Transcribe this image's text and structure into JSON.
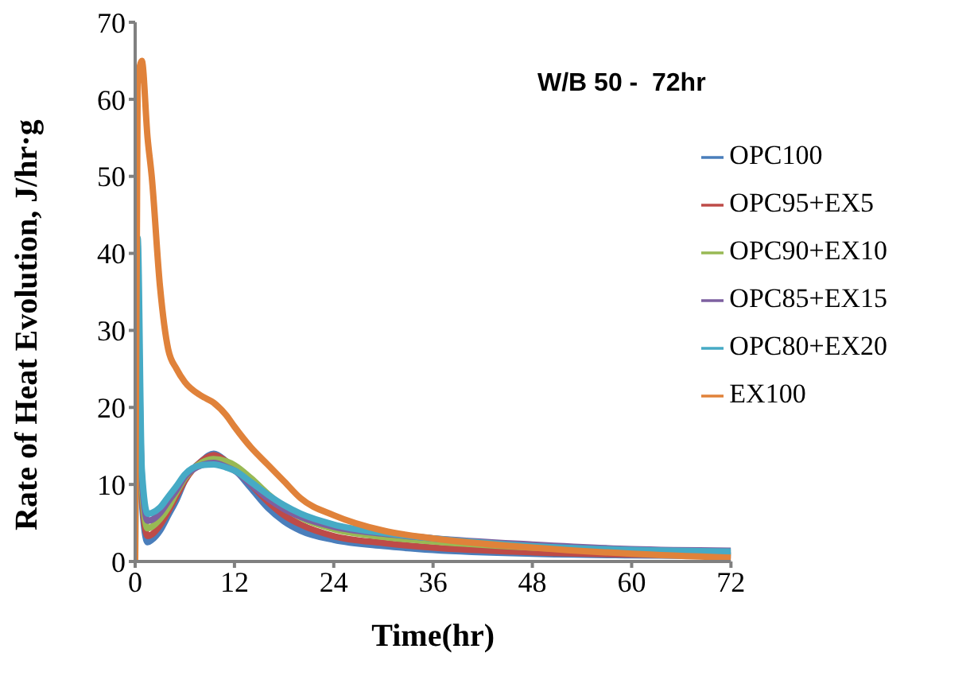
{
  "chart_data": {
    "type": "line",
    "title": "W/B 50 -  72hr",
    "xlabel": "Time(hr)",
    "ylabel": "Rate of Heat Evolution, J/hr·g",
    "x": [
      0,
      0.3,
      0.8,
      1.5,
      2,
      3,
      4,
      5,
      6,
      8,
      9.5,
      11,
      12,
      14,
      16,
      18,
      20,
      24,
      30,
      36,
      48,
      60,
      72
    ],
    "series": [
      {
        "name": "OPC100",
        "color": "#4a7ebb",
        "values": [
          null,
          38,
          8,
          2.5,
          2.8,
          4,
          6,
          8,
          10.5,
          13,
          14,
          13,
          12,
          9.5,
          7,
          5.2,
          4,
          2.8,
          2,
          1.5,
          1,
          0.8,
          0.7
        ]
      },
      {
        "name": "OPC95+EX5",
        "color": "#be4b48",
        "values": [
          null,
          39,
          9,
          3.3,
          3.5,
          4.7,
          6.5,
          8.5,
          10.5,
          13,
          13.8,
          13,
          12.2,
          10,
          7.8,
          6,
          4.8,
          3.3,
          2.4,
          1.8,
          1.2,
          0.9,
          0.8
        ]
      },
      {
        "name": "OPC90+EX10",
        "color": "#98b954",
        "values": [
          null,
          40,
          10,
          4.3,
          4.5,
          5.5,
          7,
          9,
          10.8,
          12.8,
          13.3,
          13,
          12.5,
          10.8,
          8.8,
          7,
          5.7,
          4.2,
          3.2,
          2.6,
          1.8,
          1.3,
          1.1
        ]
      },
      {
        "name": "OPC85+EX15",
        "color": "#7d60a0",
        "values": [
          null,
          41,
          11,
          5.3,
          5.4,
          6.3,
          7.8,
          9.3,
          11,
          12.5,
          12.8,
          12.3,
          11.8,
          10,
          8.2,
          6.8,
          5.8,
          4.5,
          3.6,
          3,
          2.2,
          1.6,
          1.4
        ]
      },
      {
        "name": "OPC80+EX20",
        "color": "#46aac5",
        "values": [
          0,
          42,
          12,
          6.2,
          6.3,
          7,
          8.4,
          9.8,
          11.3,
          12.5,
          12.6,
          12.2,
          11.8,
          10.3,
          8.7,
          7.3,
          6.2,
          4.8,
          3.7,
          3,
          2,
          1.5,
          1.3
        ]
      },
      {
        "name": "EX100",
        "color": "#e0823a",
        "values": [
          0,
          62,
          65,
          55,
          50,
          35.7,
          27.5,
          25,
          23.3,
          21.5,
          20.6,
          19,
          17.5,
          14.8,
          12.6,
          10.4,
          8.2,
          6,
          4,
          3,
          1.8,
          1,
          0.5
        ]
      }
    ],
    "xlim": [
      0,
      72
    ],
    "xticks": [
      0,
      12,
      24,
      36,
      48,
      60,
      72
    ],
    "ylim": [
      0,
      70
    ],
    "yticks": [
      0,
      10,
      20,
      30,
      40,
      50,
      60,
      70
    ],
    "legend": "right",
    "marker": "none",
    "line_style": "solid"
  }
}
